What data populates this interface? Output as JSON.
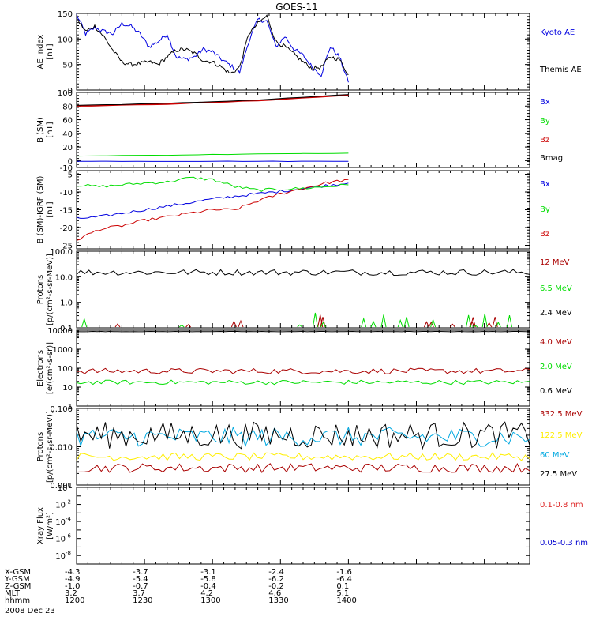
{
  "title": "GOES-11",
  "date_label": "2008 Dec 23",
  "colors": {
    "black": "#000000",
    "blue": "#0000e0",
    "green": "#00dd00",
    "red": "#cc0000",
    "cyan": "#00a8e0",
    "yellow": "#ffee00",
    "darkred": "#aa0000",
    "brightred": "#dd2222",
    "navy": "#0000d0"
  },
  "time_axis": {
    "xlim": [
      1200,
      1400
    ],
    "row_labels": [
      "X-GSM",
      "Y-GSM",
      "Z-GSM",
      "MLT",
      "hhmm"
    ],
    "ticks": [
      {
        "t": 1200,
        "vals": [
          "-4.3",
          "-4.9",
          "-1.0",
          "3.2",
          "1200"
        ]
      },
      {
        "t": 1230,
        "vals": [
          "-3.7",
          "-5.4",
          "-0.7",
          "3.7",
          "1230"
        ]
      },
      {
        "t": 1260,
        "vals": [
          "-3.1",
          "-5.8",
          "-0.4",
          "4.2",
          "1300"
        ]
      },
      {
        "t": 1290,
        "vals": [
          "-2.4",
          "-6.2",
          "-0.2",
          "4.6",
          "1330"
        ]
      },
      {
        "t": 1320,
        "vals": [
          "-1.6",
          "-6.4",
          "0.1",
          "5.1",
          "1400"
        ]
      }
    ]
  },
  "chart_data": [
    {
      "type": "line",
      "id": "ae",
      "ylabel": [
        "AE index",
        "[nT]"
      ],
      "ylim": [
        0,
        150
      ],
      "yticks": [
        0,
        50,
        100,
        150
      ],
      "x": [
        1200,
        1204,
        1208,
        1212,
        1216,
        1220,
        1224,
        1228,
        1232,
        1236,
        1240,
        1244,
        1248,
        1252,
        1256,
        1260,
        1264,
        1268,
        1272,
        1276,
        1280,
        1284,
        1288,
        1292,
        1296,
        1300,
        1304,
        1308,
        1312,
        1316,
        1320
      ],
      "series": [
        {
          "name": "Kyoto AE",
          "color": "blue",
          "values": [
            148,
            110,
            122,
            115,
            110,
            130,
            125,
            110,
            85,
            95,
            110,
            65,
            60,
            65,
            80,
            75,
            60,
            48,
            35,
            95,
            138,
            135,
            85,
            105,
            80,
            68,
            45,
            30,
            85,
            65,
            15
          ]
        },
        {
          "name": "Themis AE",
          "color": "black",
          "values": [
            140,
            115,
            125,
            105,
            78,
            55,
            50,
            52,
            55,
            50,
            65,
            78,
            80,
            72,
            58,
            55,
            45,
            32,
            45,
            110,
            130,
            145,
            95,
            85,
            70,
            55,
            42,
            45,
            65,
            60,
            30
          ]
        }
      ]
    },
    {
      "type": "line",
      "id": "bfield",
      "ylabel": [
        "B (SM)",
        "[nT]"
      ],
      "ylim": [
        -10,
        100
      ],
      "yticks": [
        -10,
        0,
        20,
        40,
        60,
        80,
        100
      ],
      "x": [
        1200,
        1240,
        1280,
        1320
      ],
      "series": [
        {
          "name": "Bx",
          "color": "blue",
          "values": [
            -1,
            -1,
            -1,
            -1
          ]
        },
        {
          "name": "By",
          "color": "green",
          "values": [
            7,
            8,
            10,
            11
          ]
        },
        {
          "name": "Bz",
          "color": "red",
          "values": [
            80,
            83,
            88,
            96
          ]
        },
        {
          "name": "Bmag",
          "color": "black",
          "values": [
            81,
            84,
            89,
            97
          ]
        }
      ]
    },
    {
      "type": "line",
      "id": "bresid",
      "ylabel": [
        "B (SM)-IGRF (SM)",
        "[nT]"
      ],
      "ylim": [
        -26,
        -4
      ],
      "yticks": [
        -25,
        -20,
        -15,
        -10,
        -5
      ],
      "x": [
        1200,
        1210,
        1220,
        1230,
        1240,
        1250,
        1260,
        1270,
        1280,
        1290,
        1300,
        1310,
        1320
      ],
      "series": [
        {
          "name": "Bx",
          "color": "blue",
          "values": [
            -17.5,
            -17.0,
            -16.0,
            -15.0,
            -14.0,
            -13.0,
            -12.0,
            -11.2,
            -10.5,
            -9.8,
            -9.0,
            -8.2,
            -7.5
          ]
        },
        {
          "name": "By",
          "color": "green",
          "values": [
            -8.0,
            -8.5,
            -8.0,
            -7.5,
            -7.2,
            -6.0,
            -6.5,
            -8.5,
            -9.5,
            -9.2,
            -9.0,
            -8.5,
            -8.0
          ]
        },
        {
          "name": "Bz",
          "color": "red",
          "values": [
            -23.5,
            -20.5,
            -19.5,
            -18.0,
            -17.0,
            -16.0,
            -15.0,
            -15.0,
            -12.5,
            -10.5,
            -9.0,
            -7.5,
            -6.5
          ]
        }
      ]
    },
    {
      "type": "line",
      "id": "protons_hi",
      "yscale": "log",
      "ylabel": [
        "Protons",
        "[p/(cm²-s-sr-MeV)]"
      ],
      "ylim": [
        0.1,
        100
      ],
      "yticks": [
        "0.1",
        "1.0",
        "10.0",
        "100.0"
      ],
      "series": [
        {
          "name": "12 MeV",
          "color": "darkred",
          "note": "sporadic spikes near floor"
        },
        {
          "name": "6.5 MeV",
          "color": "green",
          "note": "sporadic spikes near floor"
        },
        {
          "name": "2.4 MeV",
          "color": "black",
          "base": 15,
          "jitter": 0.12
        }
      ]
    },
    {
      "type": "line",
      "id": "electrons",
      "yscale": "log",
      "ylabel": [
        "Electrons",
        "[e/(cm²-s-sr)]"
      ],
      "ylim": [
        1,
        10000
      ],
      "yticks": [
        "1",
        "10",
        "100",
        "1000",
        "10000"
      ],
      "series": [
        {
          "name": "4.0 MeV",
          "color": "darkred",
          "base": 70,
          "jitter": 0.15
        },
        {
          "name": "2.0 MeV",
          "color": "green",
          "base": 18,
          "jitter": 0.12
        },
        {
          "name": "0.6 MeV",
          "color": "black",
          "base": 8500,
          "jitter": 0.01
        }
      ]
    },
    {
      "type": "line",
      "id": "protons_lo",
      "yscale": "log",
      "ylabel": [
        "Protons",
        "[p/(cm²-s-sr-MeV)]"
      ],
      "ylim": [
        0.001,
        0.1
      ],
      "yticks": [
        "0.001",
        "0.010",
        "0.100"
      ],
      "series": [
        {
          "name": "332.5 MeV",
          "color": "darkred",
          "base": 0.0028,
          "jitter": 0.12
        },
        {
          "name": "122.5 MeV",
          "color": "yellow",
          "base": 0.0055,
          "jitter": 0.1
        },
        {
          "name": "60 MeV",
          "color": "cyan",
          "base": 0.018,
          "jitter": 0.25
        },
        {
          "name": "27.5 MeV",
          "color": "black",
          "base": 0.02,
          "jitter": 0.35
        }
      ]
    },
    {
      "type": "line",
      "id": "xray",
      "yscale": "log",
      "ylabel": [
        "Xray Flux",
        "[W/m²]"
      ],
      "ylim": [
        1e-09,
        1
      ],
      "ytick_exps": [
        0,
        -2,
        -4,
        -6,
        -8
      ],
      "series": [
        {
          "name": "0.1-0.8 nm",
          "color": "brightred"
        },
        {
          "name": "0.05-0.3 nm",
          "color": "navy"
        }
      ]
    }
  ]
}
